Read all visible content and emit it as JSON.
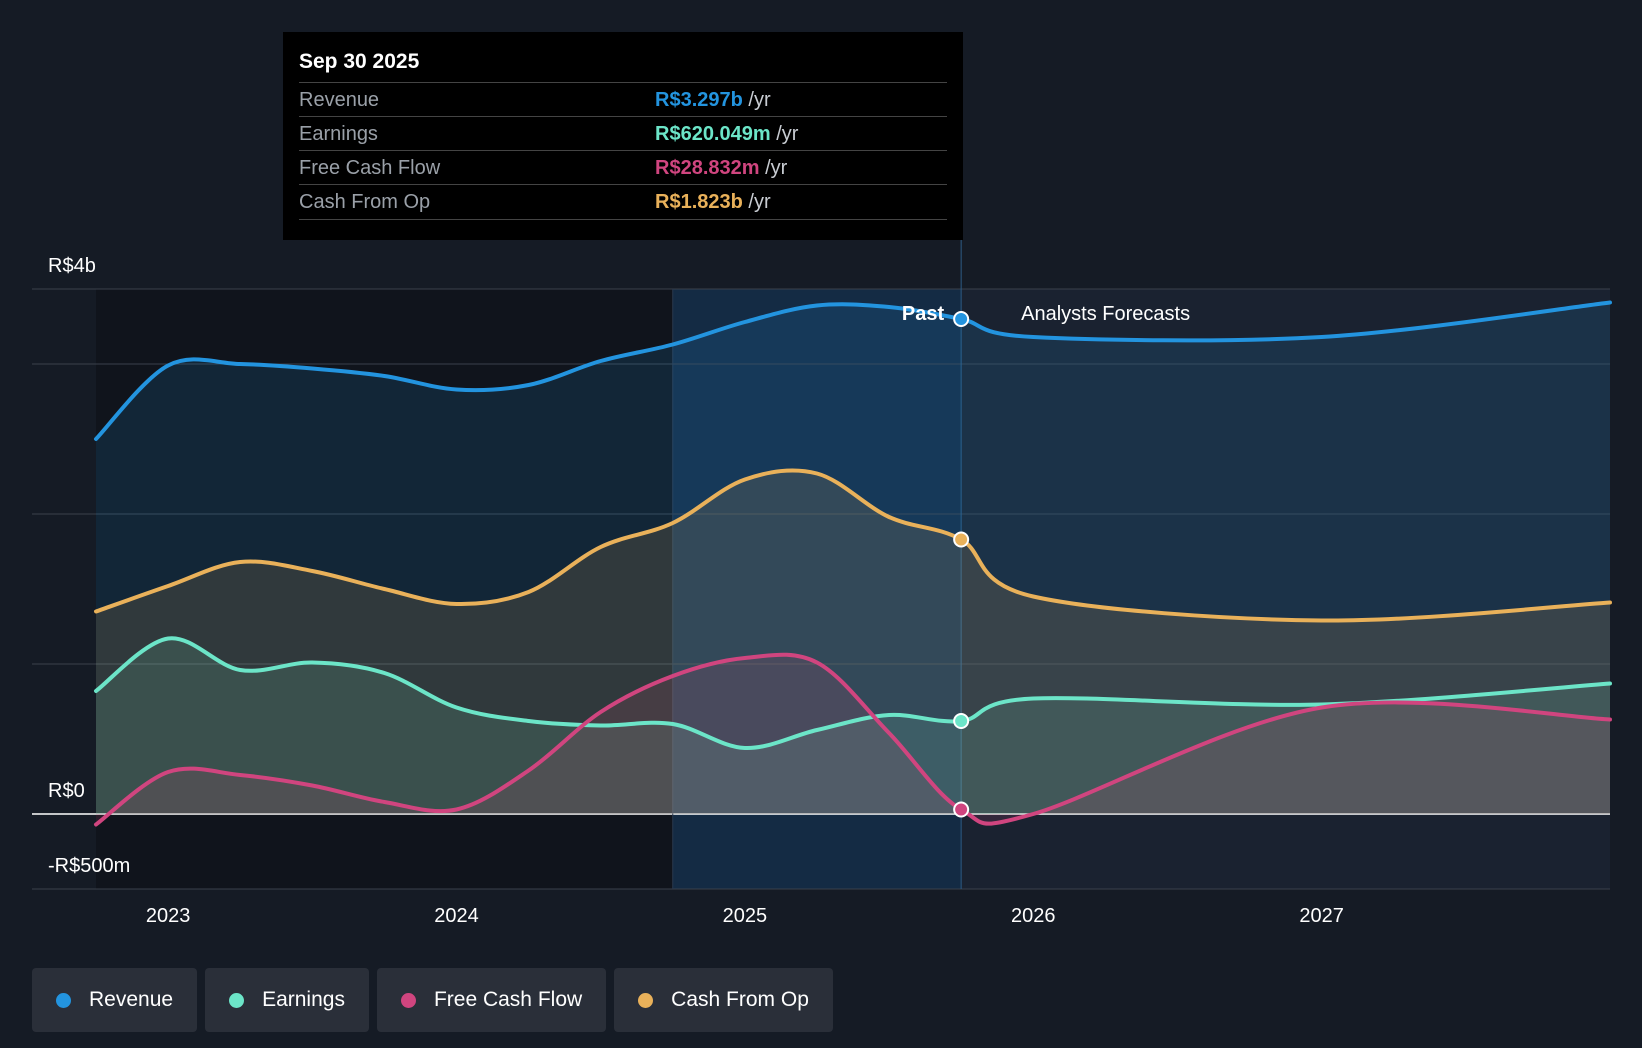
{
  "tooltip": {
    "date": "Sep 30 2025",
    "rows": [
      {
        "label": "Revenue",
        "value": "R$3.297b",
        "unit": " /yr",
        "color": "#2394df"
      },
      {
        "label": "Earnings",
        "value": "R$620.049m",
        "unit": " /yr",
        "color": "#6ce5c8"
      },
      {
        "label": "Free Cash Flow",
        "value": "R$28.832m",
        "unit": " /yr",
        "color": "#d0457f"
      },
      {
        "label": "Cash From Op",
        "value": "R$1.823b",
        "unit": " /yr",
        "color": "#e9b15a"
      }
    ]
  },
  "chart_data": {
    "type": "line",
    "title": "",
    "xlabel": "",
    "ylabel": "",
    "y_tick_labels": [
      "R$4b",
      "R$0",
      "-R$500m"
    ],
    "x_tick_labels": [
      "2023",
      "2024",
      "2025",
      "2026",
      "2027"
    ],
    "x_ticks": [
      2023,
      2024,
      2025,
      2026,
      2027
    ],
    "xlim": [
      2022.75,
      2028.0
    ],
    "ylim": [
      -0.5,
      3.5
    ],
    "past_label": "Past",
    "forecast_label": "Analysts Forecasts",
    "past_end": 2025.75,
    "highlight_start": 2024.75,
    "x": [
      2022.75,
      2023.0,
      2023.25,
      2023.5,
      2023.75,
      2024.0,
      2024.25,
      2024.5,
      2024.75,
      2025.0,
      2025.25,
      2025.5,
      2025.75,
      2026.0,
      2027.0,
      2028.0
    ],
    "series": [
      {
        "name": "Revenue",
        "color": "#2394df",
        "unit": "R$ b",
        "values": [
          2.5,
          2.99,
          3.0,
          2.97,
          2.92,
          2.83,
          2.86,
          3.02,
          3.13,
          3.28,
          3.39,
          3.38,
          3.3,
          3.18,
          3.18,
          3.41
        ]
      },
      {
        "name": "Earnings",
        "color": "#6ce5c8",
        "unit": "R$ b",
        "values": [
          0.82,
          1.17,
          0.96,
          1.01,
          0.94,
          0.71,
          0.62,
          0.59,
          0.6,
          0.44,
          0.56,
          0.66,
          0.62,
          0.77,
          0.73,
          0.87
        ]
      },
      {
        "name": "Free Cash Flow",
        "color": "#d0457f",
        "unit": "R$ b",
        "values": [
          -0.07,
          0.28,
          0.26,
          0.19,
          0.08,
          0.03,
          0.29,
          0.68,
          0.92,
          1.04,
          1.01,
          0.54,
          0.03,
          0.0,
          0.71,
          0.63
        ]
      },
      {
        "name": "Cash From Op",
        "color": "#e9b15a",
        "unit": "R$ b",
        "values": [
          1.35,
          1.52,
          1.68,
          1.62,
          1.5,
          1.4,
          1.48,
          1.78,
          1.94,
          2.23,
          2.27,
          1.98,
          1.83,
          1.45,
          1.29,
          1.41
        ]
      }
    ]
  }
}
